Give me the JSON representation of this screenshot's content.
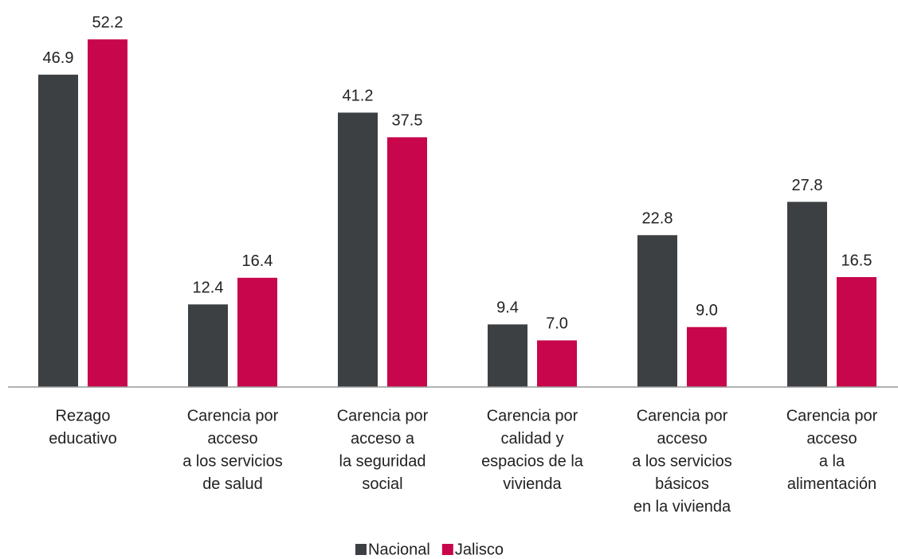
{
  "chart_data": {
    "type": "bar",
    "categories": [
      [
        "Rezago",
        "educativo"
      ],
      [
        "Carencia por",
        "acceso",
        "a los servicios",
        "de salud"
      ],
      [
        "Carencia por",
        "acceso a",
        "la seguridad",
        "social"
      ],
      [
        "Carencia por",
        "calidad y",
        "espacios de la",
        "vivienda"
      ],
      [
        "Carencia por",
        "acceso",
        "a los servicios",
        "básicos",
        "en la vivienda"
      ],
      [
        "Carencia por",
        "acceso",
        "a la",
        "alimentación"
      ]
    ],
    "series": [
      {
        "name": "Nacional",
        "color": "#3d4043",
        "values": [
          46.9,
          12.4,
          41.2,
          9.4,
          22.8,
          27.8
        ],
        "value_labels": [
          "46.9",
          "12.4",
          "41.2",
          "9.4",
          "22.8",
          "27.8"
        ]
      },
      {
        "name": "Jalisco",
        "color": "#c8064b",
        "values": [
          52.2,
          16.4,
          37.5,
          7.0,
          9.0,
          16.5
        ],
        "value_labels": [
          "52.2",
          "16.4",
          "37.5",
          "7.0",
          "9.0",
          "16.5"
        ]
      }
    ],
    "ylim": [
      0,
      55
    ],
    "legend": "bottom"
  }
}
